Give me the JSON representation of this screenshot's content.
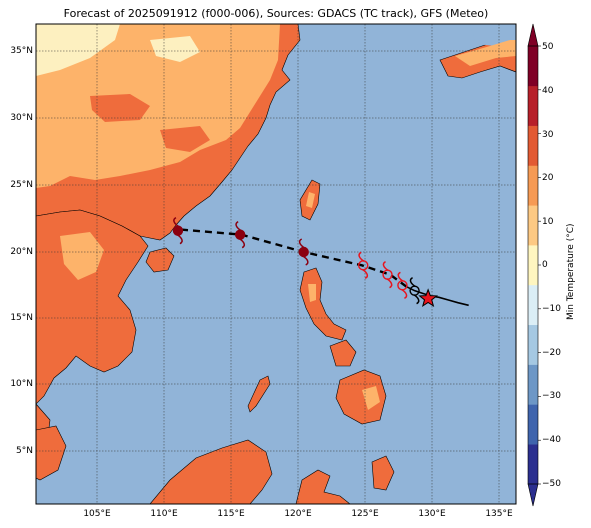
{
  "title": "Forecast of 2025091912 (f000-006), Sources: GDACS (TC track), GFS (Meteo)",
  "lat_ticks": [
    "35°N",
    "30°N",
    "25°N",
    "20°N",
    "15°N",
    "10°N",
    "5°N"
  ],
  "lon_ticks": [
    "105°E",
    "110°E",
    "115°E",
    "120°E",
    "125°E",
    "130°E",
    "135°E"
  ],
  "colorbar": {
    "label": "Min Temperature (°C)",
    "ticks": [
      "50",
      "40",
      "30",
      "20",
      "10",
      "0",
      "−10",
      "−20",
      "−30",
      "−40",
      "−50"
    ],
    "colors": [
      "#2b2f8f",
      "#3f64ad",
      "#6d97c6",
      "#a5c8e2",
      "#dbeef6",
      "#fff6c0",
      "#fdc983",
      "#f69a54",
      "#e25a33",
      "#b7202a",
      "#7f0026"
    ]
  },
  "colors": {
    "sea": "#91b4d8",
    "land_warm": "#ef6c3c",
    "land_mild": "#fdb36a",
    "land_cool": "#fdf0c0",
    "track": "#000000",
    "storm_symbol": "#8b0010",
    "forecast_symbol": "#e8141e",
    "current_star": "#e8141e"
  },
  "map": {
    "lon_range": [
      101,
      136.5
    ],
    "lat_range": [
      1,
      37
    ]
  },
  "track": {
    "past": [
      [
        133,
        15.9
      ],
      [
        132.2,
        16.1
      ],
      [
        131.5,
        16.3
      ],
      [
        130.8,
        16.5
      ],
      [
        130.2,
        16.6
      ],
      [
        129.6,
        16.8
      ],
      [
        129,
        17.0
      ],
      [
        128.4,
        17.3
      ]
    ],
    "forecast": [
      [
        128.4,
        17.3
      ],
      [
        127.2,
        18.2
      ],
      [
        125.1,
        18.9
      ],
      [
        120.8,
        19.9
      ],
      [
        116.2,
        21.2
      ],
      [
        111.5,
        21.6
      ]
    ],
    "current": [
      130,
      16.4
    ],
    "past_symbols": [
      [
        129,
        17.0
      ]
    ],
    "forecast_symbols": [
      [
        128.1,
        17.4
      ],
      [
        127,
        18.2
      ],
      [
        125.2,
        18.9
      ]
    ],
    "strong_symbols": [
      [
        120.8,
        19.9
      ],
      [
        116.1,
        21.2
      ],
      [
        111.5,
        21.5
      ]
    ]
  }
}
